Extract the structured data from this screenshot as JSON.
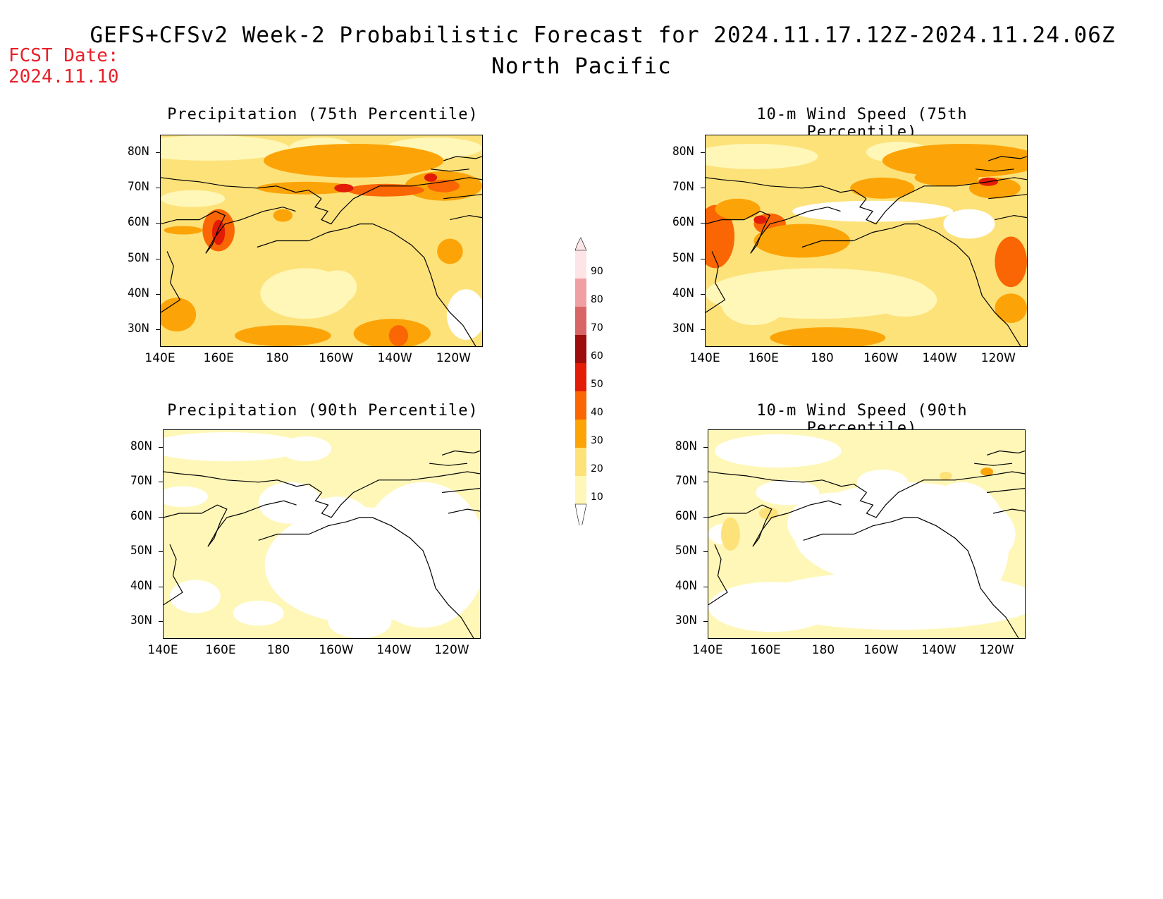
{
  "header": {
    "title": "GEFS+CFSv2 Week-2 Probabilistic Forecast for 2024.11.17.12Z-2024.11.24.06Z",
    "region": "North Pacific",
    "fcst_label": "FCST Date:",
    "fcst_date": "2024.11.10"
  },
  "panels": [
    {
      "title": "Precipitation (75th Percentile)"
    },
    {
      "title": "10-m Wind Speed (75th Percentile)"
    },
    {
      "title": "Precipitation (90th Percentile)"
    },
    {
      "title": "10-m Wind Speed (90th Percentile)"
    }
  ],
  "axes": {
    "lat_ticks": [
      "80N",
      "70N",
      "60N",
      "50N",
      "40N",
      "30N"
    ],
    "lon_ticks": [
      "140E",
      "160E",
      "180",
      "160W",
      "140W",
      "120W"
    ]
  },
  "colorbar": {
    "levels": [
      "10",
      "20",
      "30",
      "40",
      "50",
      "60",
      "70",
      "80",
      "90"
    ],
    "colors": [
      "#fff7b8",
      "#fde27a",
      "#fca407",
      "#fb6605",
      "#e21c06",
      "#9d0d0b",
      "#d96666",
      "#f0a0a5",
      "#fde4e6"
    ]
  }
}
